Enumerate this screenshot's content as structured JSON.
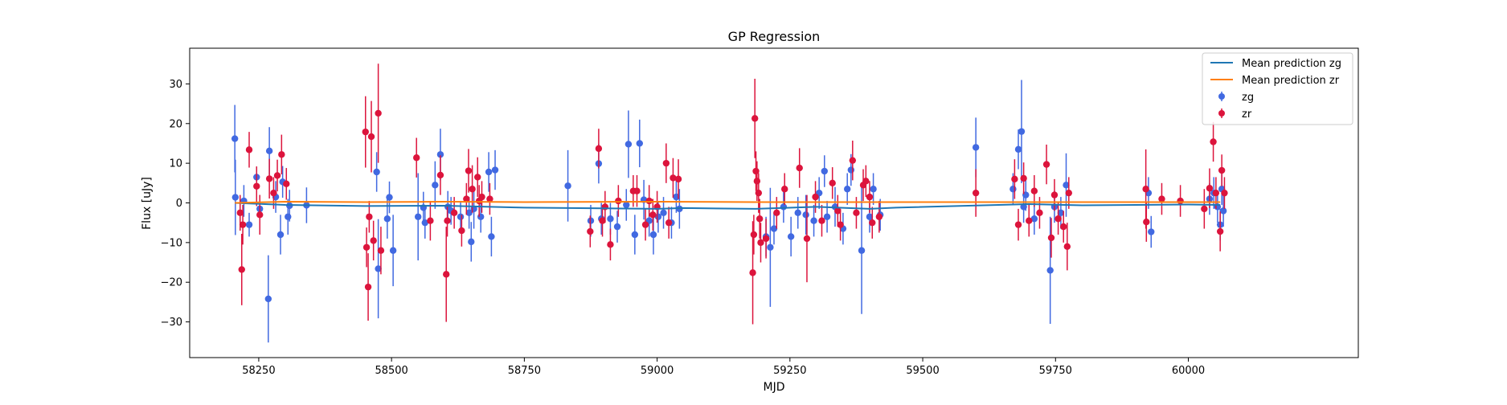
{
  "chart_data": {
    "type": "scatter",
    "title": "GP Regression",
    "xlabel": "MJD",
    "ylabel": "Flux [uJy]",
    "xlim": [
      58120,
      60320
    ],
    "ylim": [
      -39,
      39
    ],
    "xticks": [
      58250,
      58500,
      58750,
      59000,
      59250,
      59500,
      59750,
      60000
    ],
    "yticks": [
      -30,
      -20,
      -10,
      0,
      10,
      20,
      30
    ],
    "grid": false,
    "legend_position": "top-right",
    "legend": [
      "Mean prediction zg",
      "Mean prediction zr",
      "zg",
      "zr"
    ],
    "colors": {
      "mean_zg": "#1f77b4",
      "mean_zr": "#ff7f0e",
      "zg": "#4169e1",
      "zr": "#dc143c"
    },
    "lines": [
      {
        "name": "Mean prediction zg",
        "x": [
          58205,
          58300,
          58450,
          58600,
          58750,
          59000,
          59050,
          59185,
          59300,
          59400,
          59450,
          59700,
          59800,
          60000,
          60060
        ],
        "y": [
          0.0,
          -0.5,
          -0.8,
          -0.7,
          -1.2,
          -1.5,
          -1.3,
          -1.5,
          -1.0,
          -1.5,
          -1.2,
          -0.3,
          -0.6,
          -0.4,
          -0.5
        ]
      },
      {
        "name": "Mean prediction zr",
        "x": [
          58205,
          58300,
          58450,
          58600,
          58750,
          59000,
          59185,
          59300,
          59400,
          59700,
          59800,
          60000,
          60060
        ],
        "y": [
          0.0,
          0.3,
          0.2,
          0.3,
          0.2,
          0.3,
          0.2,
          0.2,
          0.2,
          0.2,
          0.2,
          0.2,
          0.2
        ]
      }
    ],
    "series": [
      {
        "name": "zg",
        "points": [
          [
            58205,
            16.2,
            8.5
          ],
          [
            58206,
            1.4,
            9.5
          ],
          [
            58222,
            0.5,
            4
          ],
          [
            58232,
            -5.5,
            3
          ],
          [
            58246,
            6.5,
            2.5
          ],
          [
            58252,
            -1.5,
            3.5
          ],
          [
            58268,
            -24.2,
            11
          ],
          [
            58270,
            13.1,
            6
          ],
          [
            58282,
            1.5,
            4
          ],
          [
            58291,
            -8.0,
            5
          ],
          [
            58295,
            5.3,
            4
          ],
          [
            58305,
            -3.5,
            4.5
          ],
          [
            58308,
            -0.7,
            4
          ],
          [
            58340,
            -0.6,
            4.5
          ],
          [
            58472,
            7.8,
            5
          ],
          [
            58475,
            -16.6,
            12.5
          ],
          [
            58492,
            -4.0,
            5
          ],
          [
            58496,
            1.4,
            4
          ],
          [
            58503,
            -12.0,
            9
          ],
          [
            58550,
            -3.5,
            11
          ],
          [
            58560,
            -1.2,
            4
          ],
          [
            58563,
            -5.0,
            4
          ],
          [
            58582,
            4.5,
            6
          ],
          [
            58592,
            12.2,
            6.5
          ],
          [
            58606,
            -1.0,
            4
          ],
          [
            58612,
            -2.0,
            3.5
          ],
          [
            58630,
            -3.5,
            4
          ],
          [
            58646,
            -2.5,
            4
          ],
          [
            58650,
            -9.8,
            5
          ],
          [
            58655,
            -1.5,
            5
          ],
          [
            58668,
            -3.5,
            4
          ],
          [
            58683,
            7.8,
            5
          ],
          [
            58688,
            -8.5,
            5
          ],
          [
            58695,
            8.3,
            5
          ],
          [
            58832,
            4.3,
            9
          ],
          [
            58875,
            -4.5,
            4
          ],
          [
            58890,
            9.9,
            5
          ],
          [
            58895,
            -4.0,
            4
          ],
          [
            58912,
            -4.0,
            4
          ],
          [
            58925,
            -6.0,
            4
          ],
          [
            58942,
            -0.5,
            4
          ],
          [
            58946,
            14.8,
            8.5
          ],
          [
            58958,
            -8.0,
            5
          ],
          [
            58967,
            15.0,
            6
          ],
          [
            58975,
            0.8,
            5
          ],
          [
            58985,
            -4.5,
            4
          ],
          [
            58993,
            -8.0,
            5
          ],
          [
            59002,
            -3.5,
            4
          ],
          [
            59012,
            -2.5,
            4
          ],
          [
            59027,
            -5.0,
            4
          ],
          [
            59036,
            1.5,
            4
          ],
          [
            59042,
            -1.5,
            5
          ],
          [
            59205,
            -8.5,
            5
          ],
          [
            59213,
            -11.2,
            15
          ],
          [
            59220,
            -6.5,
            4
          ],
          [
            59238,
            -1.0,
            4
          ],
          [
            59252,
            -8.5,
            5
          ],
          [
            59265,
            -2.5,
            4
          ],
          [
            59280,
            -3.0,
            5
          ],
          [
            59295,
            -4.5,
            4
          ],
          [
            59305,
            2.5,
            4
          ],
          [
            59315,
            8.0,
            4
          ],
          [
            59320,
            -3.5,
            4
          ],
          [
            59335,
            -1.0,
            5
          ],
          [
            59350,
            -6.5,
            4
          ],
          [
            59358,
            3.5,
            4
          ],
          [
            59365,
            8.3,
            4
          ],
          [
            59385,
            -12.0,
            16
          ],
          [
            59400,
            -3.5,
            4
          ],
          [
            59407,
            3.5,
            4
          ],
          [
            59420,
            -3.0,
            4
          ],
          [
            59600,
            14.0,
            7.5
          ],
          [
            59670,
            3.5,
            4
          ],
          [
            59680,
            13.5,
            5
          ],
          [
            59686,
            18.0,
            13
          ],
          [
            59690,
            -1.0,
            4
          ],
          [
            59694,
            2.0,
            4
          ],
          [
            59710,
            -4.0,
            4
          ],
          [
            59740,
            -17.0,
            13.5
          ],
          [
            59748,
            -1.0,
            4
          ],
          [
            59760,
            -2.5,
            4
          ],
          [
            59770,
            4.5,
            8
          ],
          [
            59925,
            2.5,
            4
          ],
          [
            59930,
            -7.3,
            4
          ],
          [
            60040,
            1.0,
            4
          ],
          [
            60048,
            2.5,
            4
          ],
          [
            60055,
            -1.0,
            4
          ],
          [
            60060,
            -5.5,
            4
          ],
          [
            60063,
            3.5,
            4
          ],
          [
            60066,
            -2.0,
            4
          ]
        ]
      },
      {
        "name": "zr",
        "points": [
          [
            58215,
            -2.5,
            4.5
          ],
          [
            58218,
            -16.8,
            9
          ],
          [
            58220,
            -5.5,
            5
          ],
          [
            58232,
            13.4,
            4.5
          ],
          [
            58246,
            4.2,
            5
          ],
          [
            58252,
            -3.0,
            5
          ],
          [
            58270,
            6.1,
            5
          ],
          [
            58278,
            2.5,
            4
          ],
          [
            58285,
            6.9,
            4
          ],
          [
            58293,
            12.2,
            5
          ],
          [
            58302,
            4.8,
            4
          ],
          [
            58451,
            17.9,
            9
          ],
          [
            58453,
            -11.2,
            5
          ],
          [
            58456,
            -21.2,
            8.5
          ],
          [
            58458,
            -3.5,
            4
          ],
          [
            58462,
            16.7,
            9
          ],
          [
            58466,
            -9.5,
            5
          ],
          [
            58475,
            22.6,
            12.5
          ],
          [
            58480,
            -12.0,
            6
          ],
          [
            58547,
            11.4,
            5
          ],
          [
            58573,
            -4.5,
            5
          ],
          [
            58592,
            7.0,
            5
          ],
          [
            58603,
            -18.0,
            12
          ],
          [
            58605,
            -4.5,
            4
          ],
          [
            58618,
            -2.5,
            4
          ],
          [
            58632,
            -7.0,
            4
          ],
          [
            58641,
            1.0,
            4
          ],
          [
            58645,
            8.1,
            5.5
          ],
          [
            58652,
            3.5,
            6
          ],
          [
            58662,
            6.5,
            5
          ],
          [
            58665,
            0.5,
            4
          ],
          [
            58670,
            1.5,
            4
          ],
          [
            58685,
            1.0,
            4
          ],
          [
            58874,
            -7.2,
            4
          ],
          [
            58890,
            13.7,
            5
          ],
          [
            58897,
            -4.5,
            4
          ],
          [
            58902,
            -1.0,
            4
          ],
          [
            58912,
            -10.5,
            4
          ],
          [
            58927,
            0.5,
            4
          ],
          [
            58955,
            3.0,
            4
          ],
          [
            58962,
            3.0,
            4
          ],
          [
            58978,
            -5.5,
            4
          ],
          [
            58985,
            0.5,
            4
          ],
          [
            58992,
            -3.0,
            4
          ],
          [
            59000,
            -1.0,
            4
          ],
          [
            59017,
            10.0,
            5
          ],
          [
            59022,
            -5.0,
            4
          ],
          [
            59030,
            6.3,
            5
          ],
          [
            59040,
            6.0,
            5
          ],
          [
            59180,
            -17.6,
            13
          ],
          [
            59182,
            -8.0,
            5
          ],
          [
            59184,
            21.3,
            10
          ],
          [
            59186,
            8.0,
            5
          ],
          [
            59188,
            5.5,
            5
          ],
          [
            59191,
            2.5,
            5
          ],
          [
            59193,
            -4.0,
            5
          ],
          [
            59195,
            -10.0,
            5
          ],
          [
            59205,
            -9.0,
            5
          ],
          [
            59225,
            -2.5,
            4
          ],
          [
            59240,
            3.5,
            4
          ],
          [
            59268,
            8.8,
            5
          ],
          [
            59282,
            -9.0,
            11
          ],
          [
            59298,
            1.5,
            4
          ],
          [
            59310,
            -4.5,
            4
          ],
          [
            59330,
            5.0,
            4
          ],
          [
            59340,
            -2.0,
            4
          ],
          [
            59345,
            -5.5,
            4
          ],
          [
            59368,
            10.7,
            5
          ],
          [
            59375,
            -2.5,
            4
          ],
          [
            59388,
            4.5,
            4
          ],
          [
            59393,
            5.5,
            4
          ],
          [
            59400,
            1.5,
            4
          ],
          [
            59405,
            -5.0,
            4
          ],
          [
            59418,
            -3.5,
            4
          ],
          [
            59600,
            2.5,
            6
          ],
          [
            59673,
            6.0,
            5
          ],
          [
            59680,
            -5.5,
            4
          ],
          [
            59690,
            6.2,
            4
          ],
          [
            59700,
            -4.5,
            4
          ],
          [
            59710,
            3.0,
            4
          ],
          [
            59720,
            -2.5,
            4
          ],
          [
            59733,
            9.7,
            5
          ],
          [
            59742,
            -8.8,
            5
          ],
          [
            59748,
            2.0,
            4
          ],
          [
            59755,
            -4.0,
            4
          ],
          [
            59765,
            -6.0,
            4
          ],
          [
            59772,
            -11.0,
            6
          ],
          [
            59775,
            2.5,
            4
          ],
          [
            59920,
            3.5,
            10
          ],
          [
            59921,
            -4.8,
            5
          ],
          [
            59950,
            1.0,
            4
          ],
          [
            59985,
            0.5,
            4
          ],
          [
            60030,
            -1.5,
            5
          ],
          [
            60040,
            3.7,
            5
          ],
          [
            60047,
            15.4,
            5
          ],
          [
            60052,
            2.5,
            4
          ],
          [
            60060,
            -7.2,
            5
          ],
          [
            60063,
            8.2,
            4
          ],
          [
            60068,
            2.5,
            4
          ]
        ]
      }
    ]
  }
}
